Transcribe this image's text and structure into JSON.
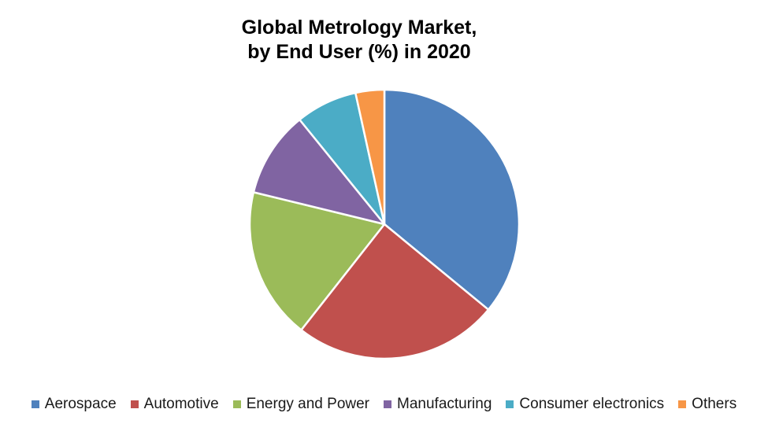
{
  "chart_data": {
    "type": "pie",
    "title_lines": [
      "Global Metrology Market,",
      "by End User (%) in 2020"
    ],
    "start_angle_deg": 0,
    "direction": "clockwise",
    "slices": [
      {
        "label": "Aerospace",
        "value": 36.5,
        "color": "#4F81BD"
      },
      {
        "label": "Automotive",
        "value": 25.0,
        "color": "#C0504D"
      },
      {
        "label": "Energy and Power",
        "value": 18.5,
        "color": "#9BBB59"
      },
      {
        "label": "Manufacturing",
        "value": 10.5,
        "color": "#8064A2"
      },
      {
        "label": "Consumer electronics",
        "value": 7.5,
        "color": "#4BACC6"
      },
      {
        "label": "Others",
        "value": 3.5,
        "color": "#F79646"
      }
    ],
    "legend_position": "bottom"
  }
}
